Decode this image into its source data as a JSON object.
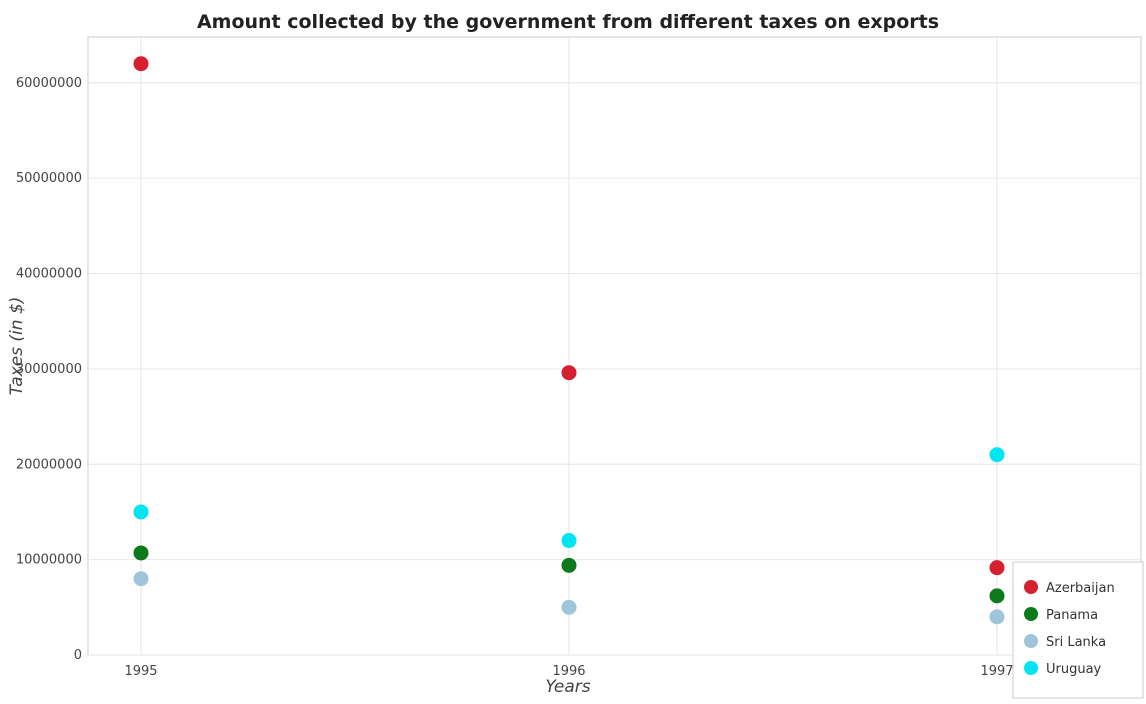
{
  "chart_data": {
    "type": "scatter",
    "title": "Amount collected by the government from different taxes on exports",
    "xlabel": "Years",
    "ylabel": "Taxes (in $)",
    "categories": [
      "1995",
      "1996",
      "1997"
    ],
    "ylim": [
      0,
      64800000
    ],
    "yticks": [
      0,
      10000000,
      20000000,
      30000000,
      40000000,
      50000000,
      60000000
    ],
    "ytick_labels": [
      "0",
      "10000000",
      "20000000",
      "30000000",
      "40000000",
      "50000000",
      "60000000"
    ],
    "grid": true,
    "legend_position": "bottom-right",
    "series": [
      {
        "name": "Azerbaijan",
        "color": "#d62030",
        "values": [
          62000000,
          29600000,
          9160000
        ]
      },
      {
        "name": "Panama",
        "color": "#0b7a1a",
        "values": [
          10700000,
          9400000,
          6200000
        ]
      },
      {
        "name": "Sri Lanka",
        "color": "#9ec5d9",
        "values": [
          8000000,
          5000000,
          4000000
        ]
      },
      {
        "name": "Uruguay",
        "color": "#00e5f2",
        "values": [
          15000000,
          12000000,
          21000000
        ]
      }
    ]
  }
}
